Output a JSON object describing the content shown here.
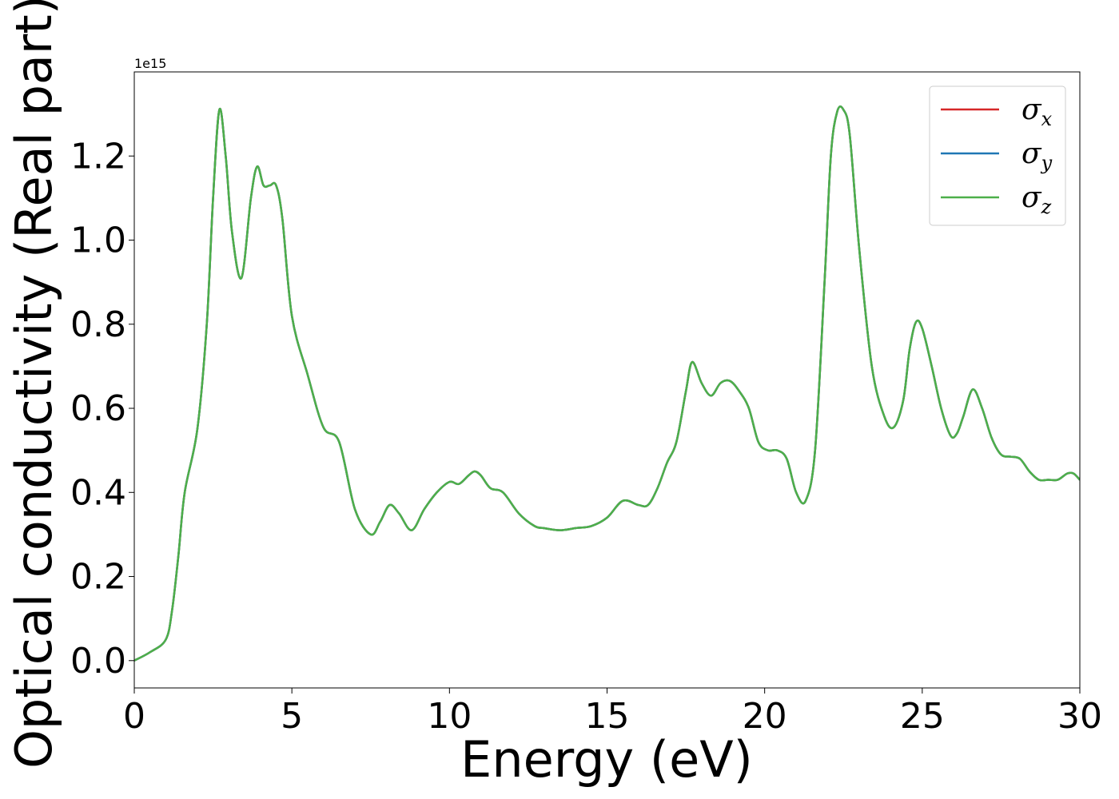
{
  "chart_data": {
    "type": "line",
    "title": "",
    "xlabel": "Energy (eV)",
    "ylabel": "Optical conductivity (Real part)",
    "y_offset_label": "1e15",
    "xlim": [
      0,
      30
    ],
    "ylim": [
      -0.065,
      1.4
    ],
    "xticks": [
      0,
      5,
      10,
      15,
      20,
      25,
      30
    ],
    "yticks": [
      0.0,
      0.2,
      0.4,
      0.6,
      0.8,
      1.0,
      1.2
    ],
    "grid": false,
    "legend": {
      "placement": "top-right",
      "entries": [
        {
          "symbol": "σ",
          "subscript": "x",
          "color": "#d62728"
        },
        {
          "symbol": "σ",
          "subscript": "y",
          "color": "#1f77b4"
        },
        {
          "symbol": "σ",
          "subscript": "z",
          "color": "#4daf4a"
        }
      ]
    },
    "x": [
      0,
      0.5,
      1.0,
      1.2,
      1.4,
      1.6,
      2.0,
      2.3,
      2.5,
      2.7,
      2.9,
      3.1,
      3.4,
      3.7,
      3.9,
      4.1,
      4.3,
      4.5,
      4.7,
      5.0,
      5.5,
      6.0,
      6.5,
      7.0,
      7.5,
      7.8,
      8.1,
      8.4,
      8.8,
      9.2,
      9.6,
      10.0,
      10.3,
      10.6,
      10.8,
      11.0,
      11.3,
      11.7,
      12.2,
      12.7,
      13.0,
      13.5,
      14.0,
      14.5,
      15.0,
      15.5,
      16.0,
      16.3,
      16.6,
      16.9,
      17.2,
      17.5,
      17.7,
      18.0,
      18.3,
      18.6,
      18.9,
      19.2,
      19.5,
      19.8,
      20.1,
      20.4,
      20.7,
      21.0,
      21.3,
      21.6,
      21.9,
      22.1,
      22.3,
      22.5,
      22.7,
      23.0,
      23.4,
      23.8,
      24.1,
      24.4,
      24.6,
      24.8,
      25.0,
      25.3,
      25.6,
      25.9,
      26.1,
      26.3,
      26.6,
      26.9,
      27.2,
      27.5,
      27.8,
      28.1,
      28.4,
      28.7,
      29.0,
      29.3,
      29.6,
      29.8,
      30.0
    ],
    "series": [
      {
        "name": "σx",
        "color": "#d62728",
        "values": [
          0.0,
          0.02,
          0.05,
          0.12,
          0.25,
          0.4,
          0.55,
          0.8,
          1.1,
          1.31,
          1.2,
          1.02,
          0.91,
          1.1,
          1.175,
          1.13,
          1.13,
          1.13,
          1.05,
          0.82,
          0.68,
          0.555,
          0.52,
          0.36,
          0.3,
          0.33,
          0.37,
          0.35,
          0.31,
          0.36,
          0.4,
          0.425,
          0.42,
          0.44,
          0.45,
          0.44,
          0.41,
          0.4,
          0.35,
          0.32,
          0.315,
          0.31,
          0.315,
          0.32,
          0.34,
          0.38,
          0.37,
          0.37,
          0.41,
          0.47,
          0.52,
          0.64,
          0.71,
          0.66,
          0.63,
          0.66,
          0.665,
          0.64,
          0.6,
          0.52,
          0.5,
          0.5,
          0.48,
          0.4,
          0.38,
          0.5,
          0.9,
          1.2,
          1.305,
          1.31,
          1.25,
          0.98,
          0.7,
          0.58,
          0.555,
          0.62,
          0.74,
          0.805,
          0.79,
          0.7,
          0.6,
          0.535,
          0.54,
          0.58,
          0.645,
          0.6,
          0.53,
          0.49,
          0.485,
          0.48,
          0.45,
          0.43,
          0.43,
          0.43,
          0.445,
          0.445,
          0.43
        ]
      },
      {
        "name": "σy",
        "color": "#1f77b4",
        "values": [
          0.0,
          0.02,
          0.05,
          0.12,
          0.25,
          0.4,
          0.55,
          0.8,
          1.1,
          1.31,
          1.2,
          1.02,
          0.91,
          1.1,
          1.175,
          1.13,
          1.13,
          1.13,
          1.05,
          0.82,
          0.68,
          0.555,
          0.52,
          0.36,
          0.3,
          0.33,
          0.37,
          0.35,
          0.31,
          0.36,
          0.4,
          0.425,
          0.42,
          0.44,
          0.45,
          0.44,
          0.41,
          0.4,
          0.35,
          0.32,
          0.315,
          0.31,
          0.315,
          0.32,
          0.34,
          0.38,
          0.37,
          0.37,
          0.41,
          0.47,
          0.52,
          0.64,
          0.71,
          0.66,
          0.63,
          0.66,
          0.665,
          0.64,
          0.6,
          0.52,
          0.5,
          0.5,
          0.48,
          0.4,
          0.38,
          0.5,
          0.9,
          1.2,
          1.305,
          1.31,
          1.25,
          0.98,
          0.7,
          0.58,
          0.555,
          0.62,
          0.74,
          0.805,
          0.79,
          0.7,
          0.6,
          0.535,
          0.54,
          0.58,
          0.645,
          0.6,
          0.53,
          0.49,
          0.485,
          0.48,
          0.45,
          0.43,
          0.43,
          0.43,
          0.445,
          0.445,
          0.43
        ]
      },
      {
        "name": "σz",
        "color": "#4daf4a",
        "values": [
          0.0,
          0.02,
          0.05,
          0.12,
          0.25,
          0.4,
          0.55,
          0.8,
          1.1,
          1.31,
          1.2,
          1.02,
          0.91,
          1.1,
          1.175,
          1.13,
          1.13,
          1.13,
          1.05,
          0.82,
          0.68,
          0.555,
          0.52,
          0.36,
          0.3,
          0.33,
          0.37,
          0.35,
          0.31,
          0.36,
          0.4,
          0.425,
          0.42,
          0.44,
          0.45,
          0.44,
          0.41,
          0.4,
          0.35,
          0.32,
          0.315,
          0.31,
          0.315,
          0.32,
          0.34,
          0.38,
          0.37,
          0.37,
          0.41,
          0.47,
          0.52,
          0.64,
          0.71,
          0.66,
          0.63,
          0.66,
          0.665,
          0.64,
          0.6,
          0.52,
          0.5,
          0.5,
          0.48,
          0.4,
          0.38,
          0.5,
          0.9,
          1.2,
          1.305,
          1.31,
          1.25,
          0.98,
          0.7,
          0.58,
          0.555,
          0.62,
          0.74,
          0.805,
          0.79,
          0.7,
          0.6,
          0.535,
          0.54,
          0.58,
          0.645,
          0.6,
          0.53,
          0.49,
          0.485,
          0.48,
          0.45,
          0.43,
          0.43,
          0.43,
          0.445,
          0.445,
          0.43
        ]
      }
    ]
  }
}
